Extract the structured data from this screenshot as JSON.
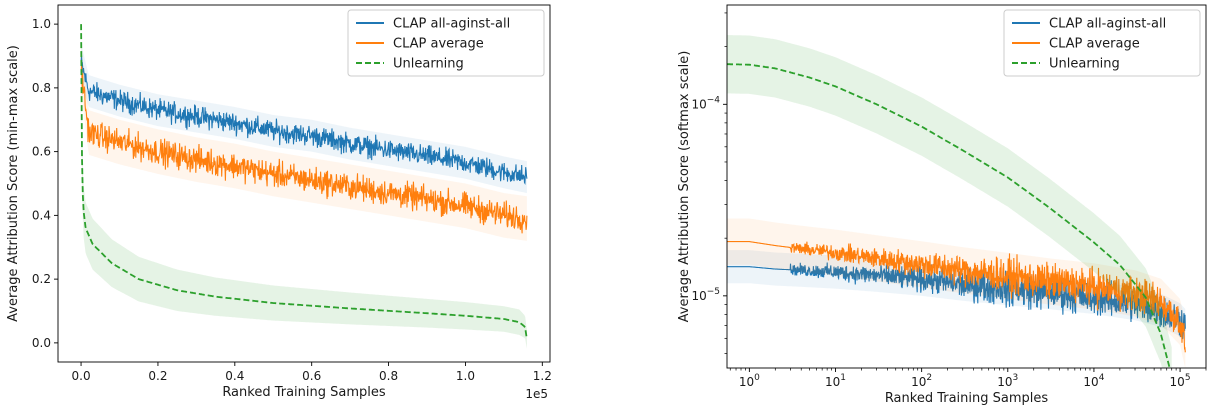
{
  "colors": {
    "blue": "#1f77b4",
    "orange": "#ff7f0e",
    "green": "#2ca02c"
  },
  "chart_data": [
    {
      "type": "line",
      "xlabel": "Ranked Training Samples",
      "ylabel": "Average Attribution Score (min-max scale)",
      "x_offset_label": "1e5",
      "xlim": [
        -0.06,
        1.22
      ],
      "ylim": [
        -0.06,
        1.06
      ],
      "xticks": [
        0.0,
        0.2,
        0.4,
        0.6,
        0.8,
        1.0,
        1.2
      ],
      "xtick_labels": [
        "0.0",
        "0.2",
        "0.4",
        "0.6",
        "0.8",
        "1.0",
        "1.2"
      ],
      "yticks": [
        0.0,
        0.2,
        0.4,
        0.6,
        0.8,
        1.0
      ],
      "ytick_labels": [
        "0.0",
        "0.2",
        "0.4",
        "0.6",
        "0.8",
        "1.0"
      ],
      "grid": false,
      "legend_position": "top-right",
      "series": [
        {
          "name": "CLAP all-aginst-all",
          "color": "blue",
          "style": "solid",
          "noisy": true,
          "x": [
            0.0,
            0.02,
            0.1,
            0.2,
            0.3,
            0.4,
            0.5,
            0.6,
            0.7,
            0.8,
            0.9,
            1.0,
            1.1,
            1.16
          ],
          "y": [
            0.88,
            0.79,
            0.76,
            0.73,
            0.71,
            0.69,
            0.665,
            0.65,
            0.625,
            0.605,
            0.585,
            0.565,
            0.535,
            0.52
          ],
          "band": [
            0.06,
            0.05,
            0.05,
            0.05,
            0.05,
            0.05,
            0.05,
            0.05,
            0.05,
            0.05,
            0.05,
            0.05,
            0.05,
            0.05
          ]
        },
        {
          "name": "CLAP average",
          "color": "orange",
          "style": "solid",
          "noisy": true,
          "x": [
            0.0,
            0.02,
            0.1,
            0.2,
            0.3,
            0.4,
            0.5,
            0.6,
            0.7,
            0.8,
            0.9,
            1.0,
            1.1,
            1.16
          ],
          "y": [
            0.86,
            0.66,
            0.63,
            0.6,
            0.575,
            0.555,
            0.53,
            0.51,
            0.49,
            0.47,
            0.45,
            0.43,
            0.4,
            0.39
          ],
          "band": [
            0.07,
            0.07,
            0.07,
            0.07,
            0.07,
            0.07,
            0.07,
            0.07,
            0.07,
            0.07,
            0.07,
            0.07,
            0.07,
            0.07
          ]
        },
        {
          "name": "Unlearning",
          "color": "green",
          "style": "dashed",
          "noisy": false,
          "x": [
            0.0,
            0.001,
            0.003,
            0.006,
            0.012,
            0.03,
            0.08,
            0.15,
            0.25,
            0.35,
            0.5,
            0.7,
            0.9,
            1.0,
            1.1,
            1.14,
            1.155,
            1.16
          ],
          "y": [
            1.0,
            0.7,
            0.52,
            0.42,
            0.36,
            0.31,
            0.25,
            0.2,
            0.165,
            0.145,
            0.125,
            0.108,
            0.093,
            0.085,
            0.075,
            0.065,
            0.05,
            0.012
          ],
          "band": [
            0.0,
            0.05,
            0.07,
            0.08,
            0.08,
            0.08,
            0.075,
            0.07,
            0.065,
            0.06,
            0.055,
            0.05,
            0.045,
            0.043,
            0.04,
            0.04,
            0.035,
            0.03
          ]
        }
      ]
    },
    {
      "type": "line",
      "xlabel": "Ranked Training Samples",
      "ylabel": "Average Attribution Score (softmax scale)",
      "xscale": "log",
      "yscale": "log",
      "xlim": [
        0.55,
        200000
      ],
      "ylim": [
        4.2e-06,
        0.00033
      ],
      "xticks": [
        1,
        10,
        100,
        1000,
        10000,
        100000
      ],
      "xtick_base": [
        "10",
        "10",
        "10",
        "10",
        "10",
        "10"
      ],
      "xtick_exp": [
        "0",
        "1",
        "2",
        "3",
        "4",
        "5"
      ],
      "yticks": [
        1e-05,
        0.0001
      ],
      "ytick_base": [
        "10",
        "10"
      ],
      "ytick_exp": [
        "−5",
        "−4"
      ],
      "grid": false,
      "legend_position": "top-right",
      "series": [
        {
          "name": "CLAP all-aginst-all",
          "color": "blue",
          "style": "solid",
          "noisy": true,
          "noise_start": 3,
          "x": [
            0.55,
            1,
            2,
            4,
            10,
            30,
            100,
            300,
            1000,
            3000,
            10000,
            30000,
            60000,
            100000,
            115000
          ],
          "y": [
            1.42e-05,
            1.42e-05,
            1.38e-05,
            1.36e-05,
            1.33e-05,
            1.28e-05,
            1.22e-05,
            1.15e-05,
            1.09e-05,
            1.04e-05,
            9.8e-06,
            9.1e-06,
            8.4e-06,
            7.5e-06,
            7e-06
          ],
          "band_factor": 1.22
        },
        {
          "name": "CLAP average",
          "color": "orange",
          "style": "solid",
          "noisy": true,
          "noise_start": 3,
          "x": [
            0.55,
            1,
            2,
            4,
            10,
            30,
            100,
            300,
            1000,
            3000,
            10000,
            30000,
            60000,
            100000,
            115000
          ],
          "y": [
            1.92e-05,
            1.92e-05,
            1.83e-05,
            1.76e-05,
            1.68e-05,
            1.57e-05,
            1.46e-05,
            1.36e-05,
            1.27e-05,
            1.19e-05,
            1.12e-05,
            1.03e-05,
            9.3e-06,
            7.3e-06,
            5.5e-06
          ],
          "band_factor": 1.32
        },
        {
          "name": "Unlearning",
          "color": "green",
          "style": "dashed",
          "noisy": false,
          "x": [
            0.55,
            1,
            2,
            5,
            10,
            30,
            100,
            300,
            1000,
            3000,
            10000,
            20000,
            40000,
            60000,
            80000
          ],
          "y": [
            0.000162,
            0.000161,
            0.000154,
            0.000138,
            0.000124,
            0.0001,
            7.65e-05,
            5.75e-05,
            4.15e-05,
            2.9e-05,
            1.9e-05,
            1.45e-05,
            9.8e-06,
            6.3e-06,
            3.8e-06
          ],
          "band_factor": 1.42
        }
      ]
    }
  ]
}
